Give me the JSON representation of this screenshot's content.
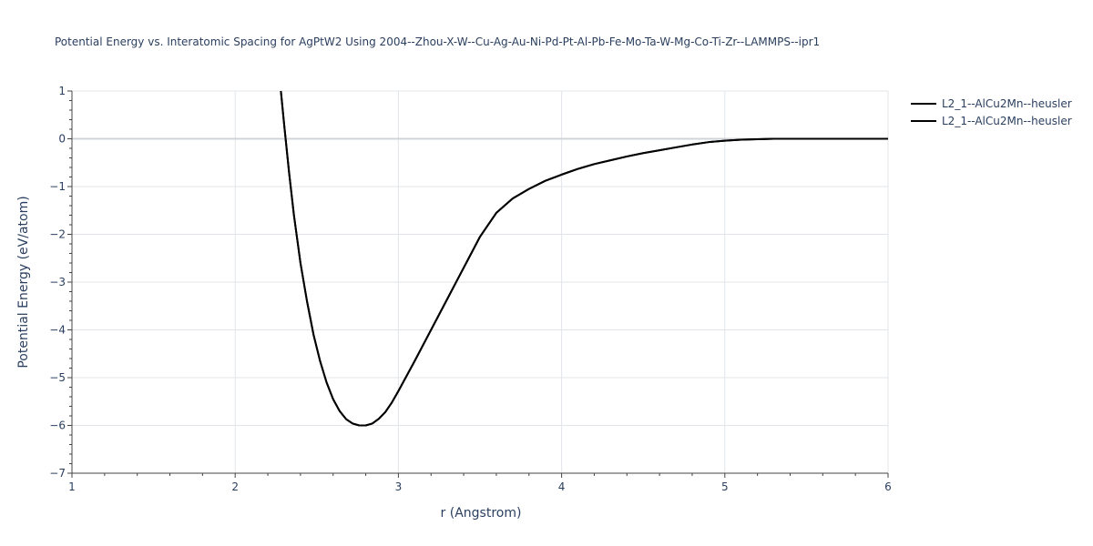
{
  "chart_data": {
    "type": "line",
    "title": "Potential Energy vs. Interatomic Spacing for AgPtW2 Using 2004--Zhou-X-W--Cu-Ag-Au-Ni-Pd-Pt-Al-Pb-Fe-Mo-Ta-W-Mg-Co-Ti-Zr--LAMMPS--ipr1",
    "xlabel": "r (Angstrom)",
    "ylabel": "Potential Energy (eV/atom)",
    "xlim": [
      1,
      6
    ],
    "ylim": [
      -7,
      1
    ],
    "xticks": [
      1,
      2,
      3,
      4,
      5,
      6
    ],
    "yticks": [
      1,
      0,
      -1,
      -2,
      -3,
      -4,
      -5,
      -6,
      -7
    ],
    "xtick_labels": [
      "1",
      "2",
      "3",
      "4",
      "5",
      "6"
    ],
    "ytick_labels": [
      "1",
      "0",
      "−1",
      "−2",
      "−3",
      "−4",
      "−5",
      "−6",
      "−7"
    ],
    "grid": true,
    "legend_position": "top-right",
    "series": [
      {
        "name": "L2_1--AlCu2Mn--heusler",
        "color": "#000000",
        "x": [
          2.28,
          2.3,
          2.33,
          2.36,
          2.4,
          2.44,
          2.48,
          2.52,
          2.56,
          2.6,
          2.64,
          2.68,
          2.72,
          2.76,
          2.8,
          2.84,
          2.88,
          2.92,
          2.96,
          3.0,
          3.1,
          3.2,
          3.3,
          3.4,
          3.5,
          3.6,
          3.7,
          3.8,
          3.9,
          4.0,
          4.1,
          4.2,
          4.3,
          4.4,
          4.5,
          4.6,
          4.7,
          4.8,
          4.9,
          5.0,
          5.1,
          5.2,
          5.3,
          5.5,
          5.75,
          6.0
        ],
        "y": [
          1.0,
          0.3,
          -0.7,
          -1.6,
          -2.6,
          -3.4,
          -4.1,
          -4.65,
          -5.1,
          -5.45,
          -5.7,
          -5.87,
          -5.96,
          -6.0,
          -6.0,
          -5.96,
          -5.86,
          -5.72,
          -5.52,
          -5.28,
          -4.65,
          -4.0,
          -3.35,
          -2.7,
          -2.05,
          -1.55,
          -1.25,
          -1.05,
          -0.88,
          -0.75,
          -0.63,
          -0.53,
          -0.45,
          -0.37,
          -0.3,
          -0.24,
          -0.18,
          -0.12,
          -0.07,
          -0.04,
          -0.02,
          -0.01,
          0.0,
          0.0,
          0.0,
          0.0
        ]
      },
      {
        "name": "L2_1--AlCu2Mn--heusler",
        "color": "#000000",
        "x": [
          2.28,
          2.3,
          2.33,
          2.36,
          2.4,
          2.44,
          2.48,
          2.52,
          2.56,
          2.6,
          2.64,
          2.68,
          2.72,
          2.76,
          2.8,
          2.84,
          2.88,
          2.92,
          2.96,
          3.0,
          3.1,
          3.2,
          3.3,
          3.4,
          3.5,
          3.6,
          3.7,
          3.8,
          3.9,
          4.0,
          4.1,
          4.2,
          4.3,
          4.4,
          4.5,
          4.6,
          4.7,
          4.8,
          4.9,
          5.0,
          5.1,
          5.2,
          5.3,
          5.5,
          5.75,
          6.0
        ],
        "y": [
          1.0,
          0.3,
          -0.7,
          -1.6,
          -2.6,
          -3.4,
          -4.1,
          -4.65,
          -5.1,
          -5.45,
          -5.7,
          -5.87,
          -5.96,
          -6.0,
          -6.0,
          -5.96,
          -5.86,
          -5.72,
          -5.52,
          -5.28,
          -4.65,
          -4.0,
          -3.35,
          -2.7,
          -2.05,
          -1.55,
          -1.25,
          -1.05,
          -0.88,
          -0.75,
          -0.63,
          -0.53,
          -0.45,
          -0.37,
          -0.3,
          -0.24,
          -0.18,
          -0.12,
          -0.07,
          -0.04,
          -0.02,
          -0.01,
          0.0,
          0.0,
          0.0,
          0.0
        ]
      }
    ]
  }
}
